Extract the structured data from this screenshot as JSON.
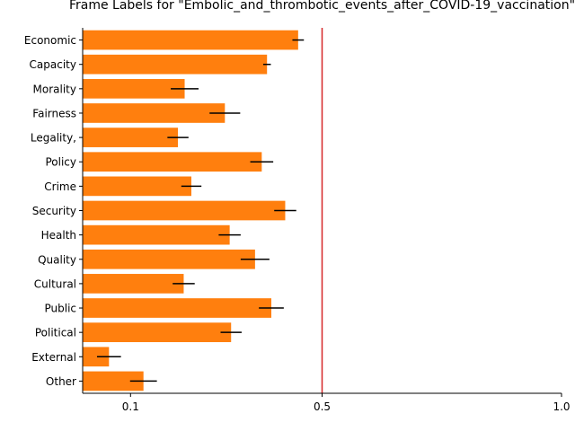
{
  "chart_data": {
    "type": "bar",
    "orientation": "horizontal",
    "title": "Frame Labels for \"Embolic_and_thrombotic_events_after_COVID-19_vaccination\"",
    "xlabel": "",
    "ylabel": "",
    "categories": [
      "Economic",
      "Capacity",
      "Morality",
      "Fairness",
      "Legality,",
      "Policy",
      "Crime",
      "Security",
      "Health",
      "Quality",
      "Cultural",
      "Public",
      "Political",
      "External",
      "Other"
    ],
    "values": [
      0.45,
      0.385,
      0.213,
      0.297,
      0.199,
      0.374,
      0.227,
      0.423,
      0.307,
      0.36,
      0.211,
      0.394,
      0.31,
      0.055,
      0.127
    ],
    "errors": [
      0.012,
      0.008,
      0.029,
      0.032,
      0.022,
      0.024,
      0.021,
      0.023,
      0.023,
      0.03,
      0.023,
      0.026,
      0.022,
      0.025,
      0.028
    ],
    "reference_line": 0.5,
    "xlim": [
      0,
      1.0
    ],
    "xticks": [
      0.1,
      0.5,
      1.0
    ],
    "xtick_labels": [
      "0.1",
      "0.5",
      "1.0"
    ],
    "grid": false,
    "colors": {
      "bar": "#ff7f0e",
      "error": "#000000",
      "reference": "#d62728",
      "axis": "#000000"
    }
  }
}
